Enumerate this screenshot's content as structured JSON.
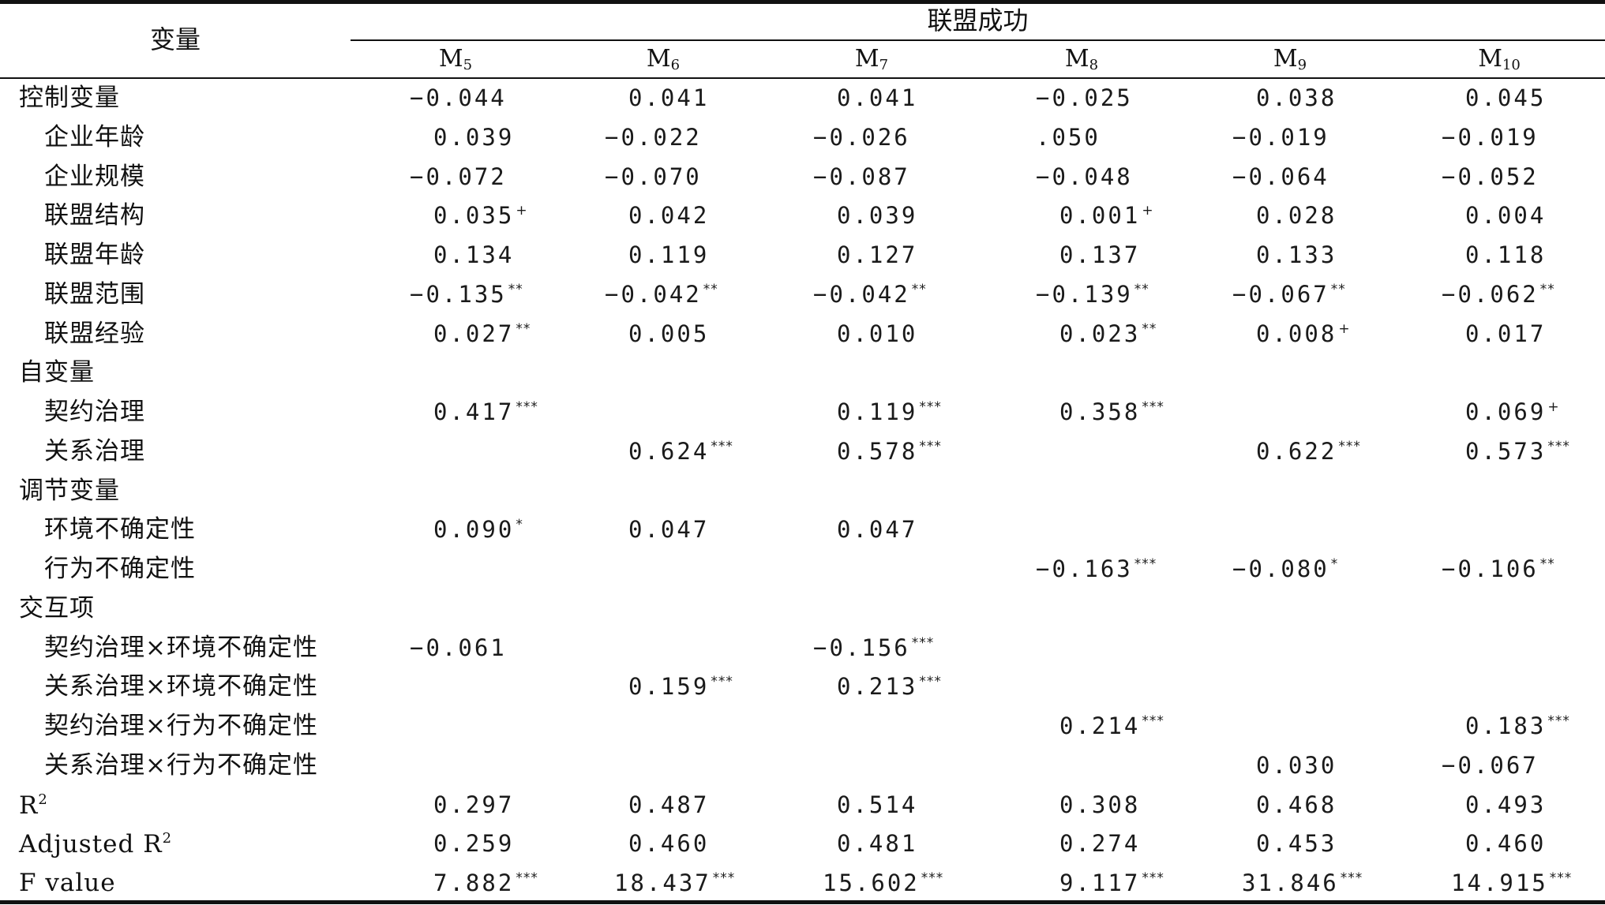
{
  "header": {
    "variable_label": "变量",
    "group_label": "联盟成功",
    "models": [
      {
        "base": "M",
        "sub": "5"
      },
      {
        "base": "M",
        "sub": "6"
      },
      {
        "base": "M",
        "sub": "7"
      },
      {
        "base": "M",
        "sub": "8"
      },
      {
        "base": "M",
        "sub": "9"
      },
      {
        "base": "M",
        "sub": "10"
      }
    ]
  },
  "rows": [
    {
      "label": "控制变量",
      "indent": false,
      "values": [
        {
          "v": "−0.044",
          "s": ""
        },
        {
          "v": "0.041",
          "s": ""
        },
        {
          "v": "0.041",
          "s": ""
        },
        {
          "v": "−0.025",
          "s": ""
        },
        {
          "v": "0.038",
          "s": ""
        },
        {
          "v": "0.045",
          "s": ""
        }
      ]
    },
    {
      "label": "企业年龄",
      "indent": true,
      "values": [
        {
          "v": "0.039",
          "s": ""
        },
        {
          "v": "−0.022",
          "s": ""
        },
        {
          "v": "−0.026",
          "s": ""
        },
        {
          "v": ".050",
          "s": ""
        },
        {
          "v": "−0.019",
          "s": ""
        },
        {
          "v": "−0.019",
          "s": ""
        }
      ]
    },
    {
      "label": "企业规模",
      "indent": true,
      "values": [
        {
          "v": "−0.072",
          "s": ""
        },
        {
          "v": "−0.070",
          "s": ""
        },
        {
          "v": "−0.087",
          "s": ""
        },
        {
          "v": "−0.048",
          "s": ""
        },
        {
          "v": "−0.064",
          "s": ""
        },
        {
          "v": "−0.052",
          "s": ""
        }
      ]
    },
    {
      "label": "联盟结构",
      "indent": true,
      "values": [
        {
          "v": "0.035",
          "s": "+"
        },
        {
          "v": "0.042",
          "s": ""
        },
        {
          "v": "0.039",
          "s": ""
        },
        {
          "v": "0.001",
          "s": "+"
        },
        {
          "v": "0.028",
          "s": ""
        },
        {
          "v": "0.004",
          "s": ""
        }
      ]
    },
    {
      "label": "联盟年龄",
      "indent": true,
      "values": [
        {
          "v": "0.134",
          "s": ""
        },
        {
          "v": "0.119",
          "s": ""
        },
        {
          "v": "0.127",
          "s": ""
        },
        {
          "v": "0.137",
          "s": ""
        },
        {
          "v": "0.133",
          "s": ""
        },
        {
          "v": "0.118",
          "s": ""
        }
      ]
    },
    {
      "label": "联盟范围",
      "indent": true,
      "values": [
        {
          "v": "−0.135",
          "s": "**"
        },
        {
          "v": "−0.042",
          "s": "**"
        },
        {
          "v": "−0.042",
          "s": "**"
        },
        {
          "v": "−0.139",
          "s": "**"
        },
        {
          "v": "−0.067",
          "s": "**"
        },
        {
          "v": "−0.062",
          "s": "**"
        }
      ]
    },
    {
      "label": "联盟经验",
      "indent": true,
      "values": [
        {
          "v": "0.027",
          "s": "**"
        },
        {
          "v": "0.005",
          "s": ""
        },
        {
          "v": "0.010",
          "s": ""
        },
        {
          "v": "0.023",
          "s": "**"
        },
        {
          "v": "0.008",
          "s": "+"
        },
        {
          "v": "0.017",
          "s": ""
        }
      ]
    },
    {
      "label": "自变量",
      "indent": false,
      "values": [
        {
          "v": "",
          "s": ""
        },
        {
          "v": "",
          "s": ""
        },
        {
          "v": "",
          "s": ""
        },
        {
          "v": "",
          "s": ""
        },
        {
          "v": "",
          "s": ""
        },
        {
          "v": "",
          "s": ""
        }
      ]
    },
    {
      "label": "契约治理",
      "indent": true,
      "values": [
        {
          "v": "0.417",
          "s": "***"
        },
        {
          "v": "",
          "s": ""
        },
        {
          "v": "0.119",
          "s": "***"
        },
        {
          "v": "0.358",
          "s": "***"
        },
        {
          "v": "",
          "s": ""
        },
        {
          "v": "0.069",
          "s": "+"
        }
      ]
    },
    {
      "label": "关系治理",
      "indent": true,
      "values": [
        {
          "v": "",
          "s": ""
        },
        {
          "v": "0.624",
          "s": "***"
        },
        {
          "v": "0.578",
          "s": "***"
        },
        {
          "v": "",
          "s": ""
        },
        {
          "v": "0.622",
          "s": "***"
        },
        {
          "v": "0.573",
          "s": "***"
        }
      ]
    },
    {
      "label": "调节变量",
      "indent": false,
      "values": [
        {
          "v": "",
          "s": ""
        },
        {
          "v": "",
          "s": ""
        },
        {
          "v": "",
          "s": ""
        },
        {
          "v": "",
          "s": ""
        },
        {
          "v": "",
          "s": ""
        },
        {
          "v": "",
          "s": ""
        }
      ]
    },
    {
      "label": "环境不确定性",
      "indent": true,
      "values": [
        {
          "v": "0.090",
          "s": "*"
        },
        {
          "v": "0.047",
          "s": ""
        },
        {
          "v": "0.047",
          "s": ""
        },
        {
          "v": "",
          "s": ""
        },
        {
          "v": "",
          "s": ""
        },
        {
          "v": "",
          "s": ""
        }
      ]
    },
    {
      "label": "行为不确定性",
      "indent": true,
      "values": [
        {
          "v": "",
          "s": ""
        },
        {
          "v": "",
          "s": ""
        },
        {
          "v": "",
          "s": ""
        },
        {
          "v": "−0.163",
          "s": "***"
        },
        {
          "v": "−0.080",
          "s": "*"
        },
        {
          "v": "−0.106",
          "s": "**"
        }
      ]
    },
    {
      "label": "交互项",
      "indent": false,
      "values": [
        {
          "v": "",
          "s": ""
        },
        {
          "v": "",
          "s": ""
        },
        {
          "v": "",
          "s": ""
        },
        {
          "v": "",
          "s": ""
        },
        {
          "v": "",
          "s": ""
        },
        {
          "v": "",
          "s": ""
        }
      ]
    },
    {
      "label": "契约治理×环境不确定性",
      "indent": true,
      "values": [
        {
          "v": "−0.061",
          "s": ""
        },
        {
          "v": "",
          "s": ""
        },
        {
          "v": "−0.156",
          "s": "***"
        },
        {
          "v": "",
          "s": ""
        },
        {
          "v": "",
          "s": ""
        },
        {
          "v": "",
          "s": ""
        }
      ]
    },
    {
      "label": "关系治理×环境不确定性",
      "indent": true,
      "values": [
        {
          "v": "",
          "s": ""
        },
        {
          "v": "0.159",
          "s": "***"
        },
        {
          "v": "0.213",
          "s": "***"
        },
        {
          "v": "",
          "s": ""
        },
        {
          "v": "",
          "s": ""
        },
        {
          "v": "",
          "s": ""
        }
      ]
    },
    {
      "label": "契约治理×行为不确定性",
      "indent": true,
      "values": [
        {
          "v": "",
          "s": ""
        },
        {
          "v": "",
          "s": ""
        },
        {
          "v": "",
          "s": ""
        },
        {
          "v": "0.214",
          "s": "***"
        },
        {
          "v": "",
          "s": ""
        },
        {
          "v": "0.183",
          "s": "***"
        }
      ]
    },
    {
      "label": "关系治理×行为不确定性",
      "indent": true,
      "values": [
        {
          "v": "",
          "s": ""
        },
        {
          "v": "",
          "s": ""
        },
        {
          "v": "",
          "s": ""
        },
        {
          "v": "",
          "s": ""
        },
        {
          "v": "0.030",
          "s": ""
        },
        {
          "v": "−0.067",
          "s": ""
        }
      ]
    },
    {
      "label": "R",
      "label_sup": "2",
      "indent": false,
      "values": [
        {
          "v": "0.297",
          "s": ""
        },
        {
          "v": "0.487",
          "s": ""
        },
        {
          "v": "0.514",
          "s": ""
        },
        {
          "v": "0.308",
          "s": ""
        },
        {
          "v": "0.468",
          "s": ""
        },
        {
          "v": "0.493",
          "s": ""
        }
      ]
    },
    {
      "label": "Adjusted R",
      "label_sup": "2",
      "indent": false,
      "values": [
        {
          "v": "0.259",
          "s": ""
        },
        {
          "v": "0.460",
          "s": ""
        },
        {
          "v": "0.481",
          "s": ""
        },
        {
          "v": "0.274",
          "s": ""
        },
        {
          "v": "0.453",
          "s": ""
        },
        {
          "v": "0.460",
          "s": ""
        }
      ]
    },
    {
      "label": "F value",
      "indent": false,
      "values": [
        {
          "v": "7.882",
          "s": "***"
        },
        {
          "v": "18.437",
          "s": "***"
        },
        {
          "v": "15.602",
          "s": "***"
        },
        {
          "v": "9.117",
          "s": "***"
        },
        {
          "v": "31.846",
          "s": "***"
        },
        {
          "v": "14.915",
          "s": "***"
        }
      ]
    }
  ]
}
